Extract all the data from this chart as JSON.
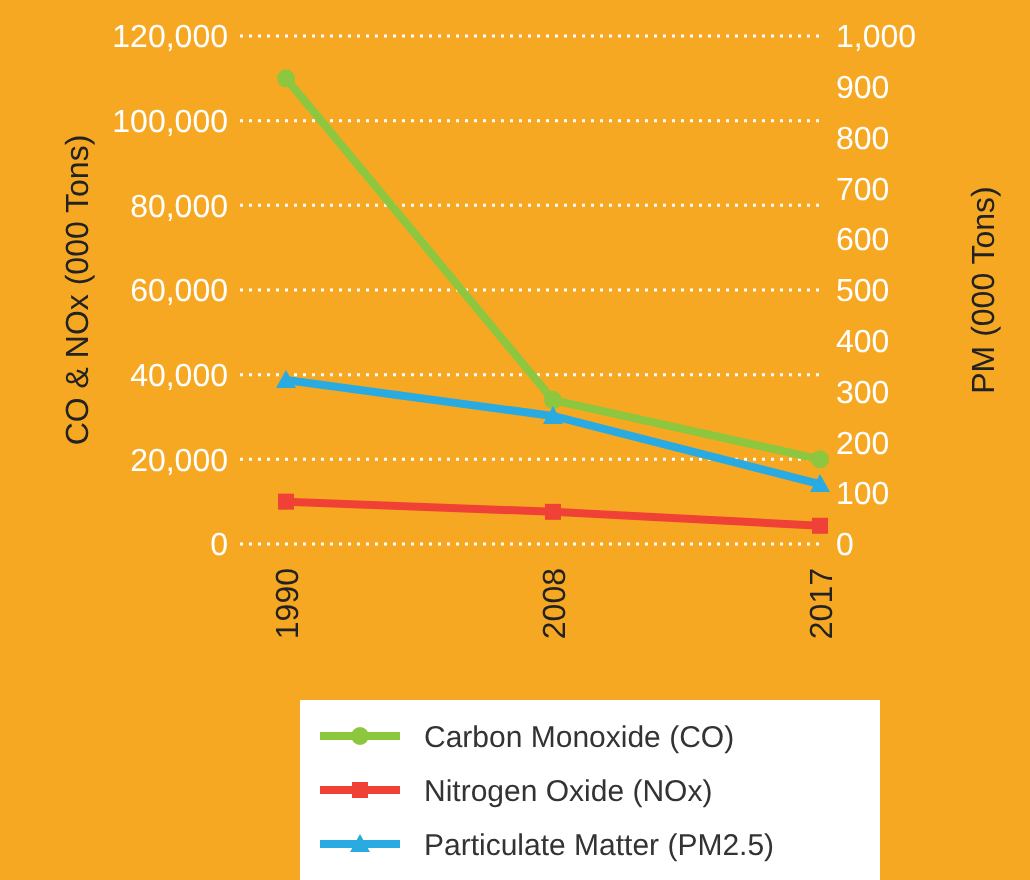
{
  "chart_data": {
    "type": "line",
    "ylabel": "CO & NOx (000 Tons)",
    "y2label": "PM (000 Tons)",
    "categories": [
      "1990",
      "2008",
      "2017"
    ],
    "series": [
      {
        "name": "Carbon Monoxide (CO)",
        "color": "#8dc63f",
        "values": [
          110000,
          34000,
          20000
        ],
        "marker": "circle"
      },
      {
        "name": "Nitrogen Oxide (NOx)",
        "color": "#ef4136",
        "values": [
          10000,
          7600,
          4300
        ],
        "marker": "square"
      },
      {
        "name": "Particulate Matter (PM2.5)",
        "color": "#29abe2",
        "values": [
          323,
          252,
          118
        ],
        "axis": "y2",
        "marker": "triangle"
      }
    ],
    "ylim": [
      0,
      120000
    ],
    "yticks": [
      0,
      {
        "value": 20000,
        "label": "20,000"
      },
      {
        "value": 40000,
        "label": "40,000"
      },
      {
        "value": 60000,
        "label": "60,000"
      },
      {
        "value": 80000,
        "label": "80,000"
      },
      {
        "value": 100000,
        "label": "100,000"
      },
      {
        "value": 120000,
        "label": "120,000"
      }
    ],
    "y2lim": [
      0,
      1000
    ],
    "y2ticks": [
      0,
      100,
      200,
      300,
      400,
      500,
      600,
      700,
      800,
      900,
      {
        "value": 1000,
        "label": "1,000"
      }
    ],
    "grid": "y",
    "legend": "bottom",
    "line_style": "solid"
  }
}
